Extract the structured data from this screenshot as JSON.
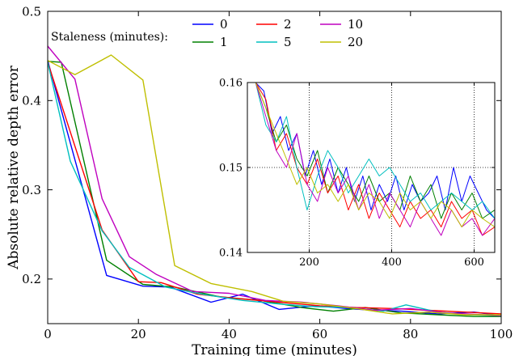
{
  "chart_data": [
    {
      "type": "line",
      "xlabel": "Training time (minutes)",
      "ylabel": "Absolute relative depth error",
      "xlim": [
        0,
        100
      ],
      "ylim": [
        0.15,
        0.5
      ],
      "xticks": [
        0,
        20,
        40,
        60,
        80,
        100
      ],
      "yticks": [
        0.2,
        0.3,
        0.4,
        0.5
      ],
      "xtick_labels": [
        "0",
        "20",
        "40",
        "60",
        "80",
        "100"
      ],
      "ytick_labels": [
        "0.2",
        "0.3",
        "0.4",
        "0.5"
      ],
      "grid": false,
      "legend_title": "Staleness (minutes):",
      "legend_position": "top",
      "series": [
        {
          "name": "0",
          "color": "#0000ff",
          "x": [
            0,
            13,
            21,
            27,
            36,
            43,
            51,
            59,
            66,
            72,
            78,
            86,
            94,
            100
          ],
          "y": [
            0.445,
            0.204,
            0.192,
            0.191,
            0.174,
            0.183,
            0.166,
            0.17,
            0.167,
            0.165,
            0.164,
            0.161,
            0.163,
            0.159
          ]
        },
        {
          "name": "1",
          "color": "#008000",
          "x": [
            0,
            3,
            13,
            21,
            28,
            38,
            47,
            56,
            63,
            70,
            78,
            86,
            94,
            100
          ],
          "y": [
            0.444,
            0.443,
            0.221,
            0.194,
            0.191,
            0.18,
            0.176,
            0.168,
            0.164,
            0.168,
            0.162,
            0.16,
            0.158,
            0.158
          ]
        },
        {
          "name": "2",
          "color": "#ff0000",
          "x": [
            0,
            12,
            20,
            25,
            33,
            42,
            51,
            60,
            68,
            76,
            84,
            92,
            100
          ],
          "y": [
            0.443,
            0.255,
            0.197,
            0.196,
            0.183,
            0.178,
            0.174,
            0.17,
            0.168,
            0.167,
            0.165,
            0.163,
            0.161
          ]
        },
        {
          "name": "5",
          "color": "#00bfbf",
          "x": [
            0,
            5,
            12,
            18,
            26,
            34,
            43,
            51,
            59,
            67,
            74,
            79,
            86,
            93,
            100
          ],
          "y": [
            0.443,
            0.332,
            0.254,
            0.213,
            0.191,
            0.183,
            0.176,
            0.172,
            0.169,
            0.168,
            0.164,
            0.171,
            0.163,
            0.16,
            0.159
          ]
        },
        {
          "name": "10",
          "color": "#bf00bf",
          "x": [
            0,
            6,
            12,
            18,
            24,
            32,
            40,
            48,
            56,
            64,
            72,
            80,
            88,
            96,
            100
          ],
          "y": [
            0.461,
            0.424,
            0.29,
            0.225,
            0.205,
            0.186,
            0.184,
            0.176,
            0.174,
            0.17,
            0.165,
            0.167,
            0.162,
            0.16,
            0.159
          ]
        },
        {
          "name": "20",
          "color": "#bfbf00",
          "x": [
            0,
            6,
            14,
            21,
            28,
            36,
            45,
            52,
            60,
            68,
            76,
            84,
            92,
            100
          ],
          "y": [
            0.445,
            0.429,
            0.451,
            0.423,
            0.215,
            0.195,
            0.186,
            0.175,
            0.172,
            0.167,
            0.161,
            0.163,
            0.16,
            0.16
          ]
        }
      ]
    },
    {
      "type": "line",
      "xlim": [
        50,
        650
      ],
      "ylim": [
        0.14,
        0.16
      ],
      "xticks": [
        200,
        400,
        600
      ],
      "yticks": [
        0.14,
        0.15,
        0.16
      ],
      "xtick_labels": [
        "200",
        "400",
        "600"
      ],
      "ytick_labels": [
        "0.14",
        "0.15",
        "0.16"
      ],
      "grid": true,
      "series": [
        {
          "name": "0",
          "color": "#0000ff",
          "x": [
            70,
            90,
            110,
            130,
            150,
            170,
            190,
            210,
            230,
            250,
            270,
            290,
            310,
            330,
            350,
            370,
            390,
            410,
            430,
            450,
            470,
            490,
            510,
            530,
            550,
            570,
            590,
            610,
            630,
            650
          ],
          "y": [
            0.16,
            0.159,
            0.154,
            0.156,
            0.152,
            0.154,
            0.149,
            0.152,
            0.148,
            0.151,
            0.147,
            0.15,
            0.146,
            0.149,
            0.145,
            0.148,
            0.146,
            0.149,
            0.145,
            0.148,
            0.146,
            0.147,
            0.149,
            0.145,
            0.15,
            0.146,
            0.149,
            0.147,
            0.145,
            0.144
          ]
        },
        {
          "name": "1",
          "color": "#008000",
          "x": [
            70,
            95,
            120,
            145,
            170,
            195,
            220,
            245,
            270,
            295,
            320,
            345,
            370,
            395,
            420,
            445,
            470,
            495,
            520,
            545,
            570,
            595,
            620,
            650
          ],
          "y": [
            0.16,
            0.157,
            0.153,
            0.155,
            0.151,
            0.149,
            0.152,
            0.147,
            0.15,
            0.148,
            0.146,
            0.149,
            0.146,
            0.147,
            0.145,
            0.149,
            0.146,
            0.148,
            0.144,
            0.147,
            0.145,
            0.147,
            0.144,
            0.145
          ]
        },
        {
          "name": "2",
          "color": "#ff0000",
          "x": [
            70,
            95,
            120,
            145,
            170,
            195,
            220,
            245,
            270,
            295,
            320,
            345,
            370,
            395,
            420,
            445,
            470,
            495,
            520,
            545,
            570,
            595,
            620,
            650
          ],
          "y": [
            0.16,
            0.158,
            0.152,
            0.154,
            0.15,
            0.148,
            0.151,
            0.147,
            0.149,
            0.145,
            0.148,
            0.144,
            0.147,
            0.145,
            0.143,
            0.146,
            0.144,
            0.145,
            0.143,
            0.146,
            0.144,
            0.145,
            0.142,
            0.143
          ]
        },
        {
          "name": "5",
          "color": "#00bfbf",
          "x": [
            70,
            95,
            120,
            145,
            170,
            195,
            220,
            245,
            270,
            295,
            320,
            345,
            370,
            395,
            420,
            445,
            470,
            495,
            520,
            545,
            570,
            595,
            620,
            650
          ],
          "y": [
            0.16,
            0.155,
            0.153,
            0.156,
            0.15,
            0.145,
            0.149,
            0.152,
            0.15,
            0.147,
            0.149,
            0.151,
            0.149,
            0.15,
            0.148,
            0.146,
            0.147,
            0.145,
            0.146,
            0.147,
            0.146,
            0.145,
            0.146,
            0.144
          ]
        },
        {
          "name": "10",
          "color": "#bf00bf",
          "x": [
            70,
            95,
            120,
            145,
            170,
            195,
            220,
            245,
            270,
            295,
            320,
            345,
            370,
            395,
            420,
            445,
            470,
            495,
            520,
            545,
            570,
            595,
            620,
            650
          ],
          "y": [
            0.16,
            0.156,
            0.152,
            0.15,
            0.154,
            0.148,
            0.146,
            0.15,
            0.147,
            0.149,
            0.145,
            0.148,
            0.144,
            0.147,
            0.145,
            0.143,
            0.146,
            0.144,
            0.142,
            0.145,
            0.143,
            0.144,
            0.142,
            0.144
          ]
        },
        {
          "name": "20",
          "color": "#bfbf00",
          "x": [
            70,
            95,
            120,
            145,
            170,
            195,
            220,
            245,
            270,
            295,
            320,
            345,
            370,
            395,
            420,
            445,
            470,
            495,
            520,
            545,
            570,
            595,
            620,
            650
          ],
          "y": [
            0.16,
            0.157,
            0.154,
            0.151,
            0.148,
            0.15,
            0.147,
            0.148,
            0.146,
            0.148,
            0.145,
            0.147,
            0.146,
            0.144,
            0.147,
            0.145,
            0.146,
            0.144,
            0.146,
            0.145,
            0.143,
            0.145,
            0.144,
            0.143
          ]
        }
      ]
    }
  ]
}
